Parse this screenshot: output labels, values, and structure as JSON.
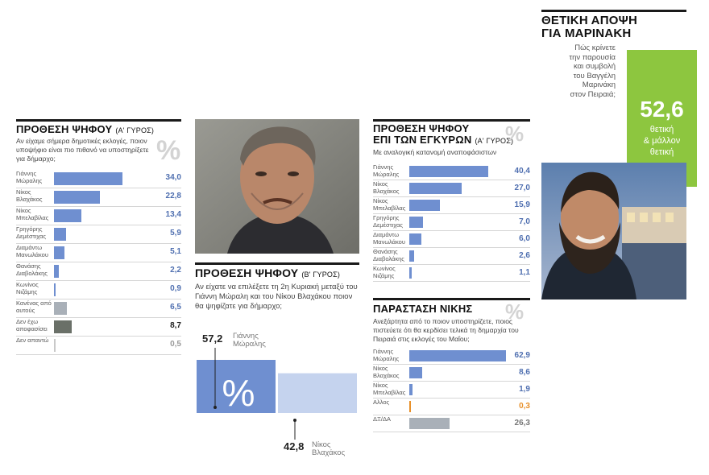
{
  "colors": {
    "bar_blue": "#6f8fd0",
    "bar_light": "#c5d3ee",
    "bar_gray": "#a9b0b8",
    "bar_dark": "#6a7068",
    "bar_orange": "#e8902a",
    "accent_green": "#8dc63f",
    "text_blue": "#4f6fb0"
  },
  "icons": {
    "percent": "percent-icon"
  },
  "chart_data": [
    {
      "type": "bar",
      "title": "ΠΡΟΘΕΣΗ ΨΗΦΟΥ",
      "round": "(Α' ΓΥΡΟΣ)",
      "subtitle": "Αν είχαμε σήμερα δημοτικές εκλογές, ποιον υποψήφιο είναι πιο πιθανό να υποστηρίξετε για δήμαρχο;",
      "percent_sign": "%",
      "categories": [
        "Γιάννης Μώραλης",
        "Νίκος Βλαχάκος",
        "Νίκος Μπελαβίλας",
        "Γρηγόρης Δεμέστιχας",
        "Διαμάντω Μανωλάκου",
        "Θανάσης Διαβολάκης",
        "Κωνίνος Νιζάμης",
        "Κανένας από αυτούς",
        "Δεν έχω αποφασίσει",
        "Δεν απαντώ"
      ],
      "values": [
        34.0,
        22.8,
        13.4,
        5.9,
        5.1,
        2.2,
        0.9,
        6.5,
        8.7,
        0.5
      ],
      "labels": [
        "34,0",
        "22,8",
        "13,4",
        "5,9",
        "5,1",
        "2,2",
        "0,9",
        "6,5",
        "8,7",
        "0,5"
      ],
      "xlim": [
        0,
        60
      ]
    },
    {
      "type": "bar",
      "title": "ΠΡΟΘΕΣΗ ΨΗΦΟΥ",
      "round": "(Β' ΓΥΡΟΣ)",
      "subtitle": "Αν είχατε να επιλέξετε τη 2η Κυριακή μεταξύ του Γιάννη Μώραλη και του Νίκου Βλαχάκου ποιον θα ψηφίζατε για δήμαρχο;",
      "percent_sign": "%",
      "categories": [
        "Γιάννης Μώραλης",
        "Νίκος Βλαχάκος"
      ],
      "values": [
        57.2,
        42.8
      ],
      "labels": [
        "57,2",
        "42,8"
      ],
      "ylim": [
        0,
        57.2
      ]
    },
    {
      "type": "bar",
      "title_line1": "ΠΡΟΘΕΣΗ ΨΗΦΟΥ",
      "title_line2": "ΕΠΙ ΤΩΝ ΕΓΚΥΡΩΝ",
      "round": "(Α' ΓΥΡΟΣ)",
      "subtitle": "Με αναλογική κατανομή αναποφάσιστων",
      "percent_sign": "%",
      "categories": [
        "Γιάννης Μώραλης",
        "Νίκος Βλαχάκος",
        "Νίκος Μπελαβίλας",
        "Γρηγόρης Δεμέστιχας",
        "Διαμάντω Μανωλάκου",
        "Θανάσης Διαβολάκης",
        "Κωνίνος Νιζάμης"
      ],
      "values": [
        40.4,
        27.0,
        15.9,
        7.0,
        6.0,
        2.6,
        1.1
      ],
      "labels": [
        "40,4",
        "27,0",
        "15,9",
        "7,0",
        "6,0",
        "2,6",
        "1,1"
      ],
      "xlim": [
        0,
        60
      ]
    },
    {
      "type": "bar",
      "title": "ΠΑΡΑΣΤΑΣΗ ΝΙΚΗΣ",
      "subtitle": "Ανεξάρτητα από το ποιον υποστηρίζετε, ποιος πιστεύετε ότι θα κερδίσει τελικά τη δημαρχία του Πειραιά στις εκλογές του Μαΐου;",
      "percent_sign": "%",
      "categories": [
        "Γιάννης Μώραλης",
        "Νίκος Βλαχάκος",
        "Νίκος Μπελαβίλας",
        "Αλλος",
        "ΔΞ/ΔΑ"
      ],
      "values": [
        62.9,
        8.6,
        1.9,
        0.3,
        26.3
      ],
      "labels": [
        "62,9",
        "8,6",
        "1,9",
        "0,3",
        "26,3"
      ],
      "xlim": [
        0,
        63
      ]
    }
  ],
  "marinakis": {
    "title_line1": "ΘΕΤΙΚΗ ΑΠΟΨΗ",
    "title_line2": "ΓΙΑ ΜΑΡΙΝΑΚΗ",
    "question": [
      "Πώς κρίνετε",
      "την παρουσία",
      "και συμβολή",
      "του Βαγγέλη",
      "Μαρινάκη",
      "στον Πειραιά;"
    ],
    "value": "52,6",
    "value_label": [
      "θετική",
      "& μάλλον",
      "θετική"
    ]
  }
}
